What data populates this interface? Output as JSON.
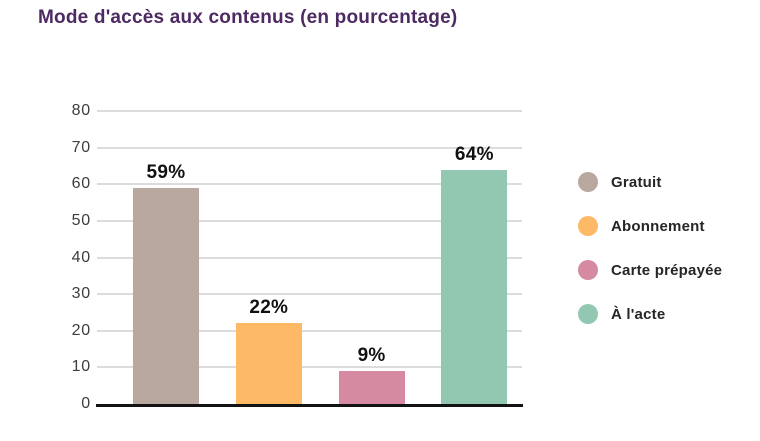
{
  "title": {
    "text": "Mode d'accès aux contenus (en pourcentage)",
    "color": "#4e2a63"
  },
  "chart_data": {
    "type": "bar",
    "title": "Mode d'accès aux contenus (en pourcentage)",
    "categories": [
      "Gratuit",
      "Abonnement",
      "Carte prépayée",
      "À l'acte"
    ],
    "values": [
      59,
      22,
      9,
      64
    ],
    "value_labels": [
      "59%",
      "22%",
      "9%",
      "64%"
    ],
    "colors": [
      "#b9a8a0",
      "#fdb965",
      "#d58aa2",
      "#92c7b2"
    ],
    "xlabel": "",
    "ylabel": "",
    "ylim": [
      0,
      80
    ],
    "yticks": [
      0,
      10,
      20,
      30,
      40,
      50,
      60,
      70,
      80
    ],
    "grid": true,
    "legend_position": "right",
    "legend": [
      {
        "label": "Gratuit",
        "color": "#b9a8a0"
      },
      {
        "label": "Abonnement",
        "color": "#fdb965"
      },
      {
        "label": "Carte prépayée",
        "color": "#d58aa2"
      },
      {
        "label": "À l'acte",
        "color": "#92c7b2"
      }
    ],
    "axis_color": "#131313",
    "gridline_color": "#dcdcdc",
    "tick_label_color": "#3d3d3d"
  }
}
